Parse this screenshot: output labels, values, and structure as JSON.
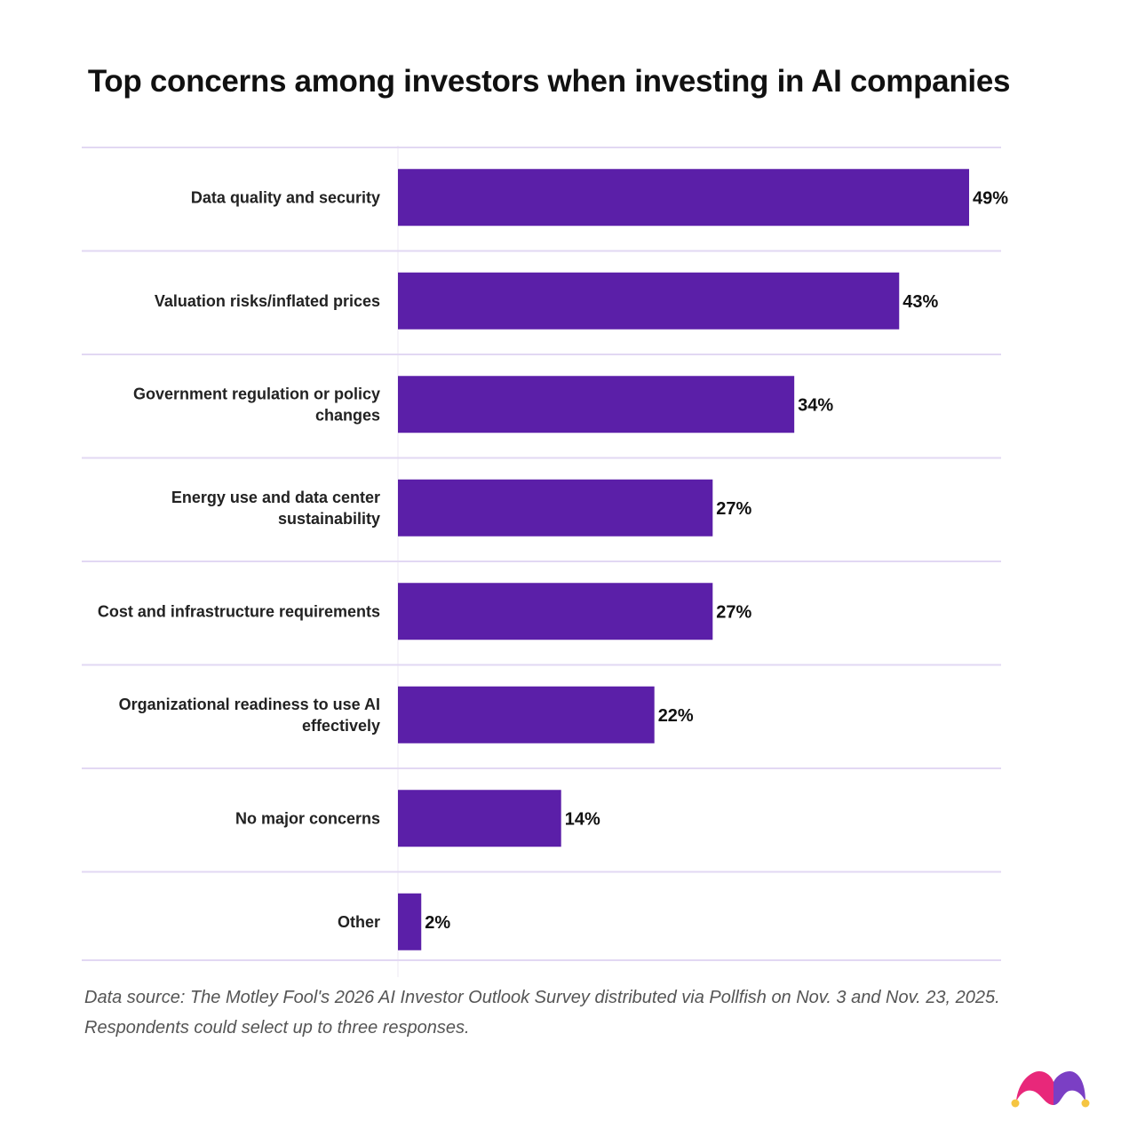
{
  "chart_data": {
    "type": "bar",
    "orientation": "horizontal",
    "title": "Top concerns among investors when investing in AI companies",
    "categories": [
      "Data quality and security",
      "Valuation risks/inflated prices",
      "Government regulation or policy changes",
      "Energy use and data center sustainability",
      "Cost and infrastructure requirements",
      "Organizational readiness to use AI effectively",
      "No major concerns",
      "Other"
    ],
    "category_lines": [
      [
        "Data quality and security"
      ],
      [
        "Valuation risks/inflated prices"
      ],
      [
        "Government regulation or policy",
        "changes"
      ],
      [
        "Energy use and data center",
        "sustainability"
      ],
      [
        "Cost and infrastructure requirements"
      ],
      [
        "Organizational readiness to use AI",
        "effectively"
      ],
      [
        "No major concerns"
      ],
      [
        "Other"
      ]
    ],
    "values": [
      49,
      43,
      34,
      27,
      27,
      22,
      14,
      2
    ],
    "data_labels": [
      "49%",
      "43%",
      "34%",
      "27%",
      "27%",
      "22%",
      "14%",
      "2%"
    ],
    "unit": "%",
    "xlim": [
      0,
      49
    ],
    "grid": false,
    "bar_color": "#5b1fa8",
    "divider_color": "#e2d8f3"
  },
  "footer": {
    "source": "Data source: The Motley Fool's 2026 AI Investor Outlook Survey distributed via Pollfish on Nov. 3 and Nov. 23, 2025. Respondents could select up to three responses."
  },
  "logo": {
    "name": "jester-hat-logo",
    "colors": [
      "#e8287a",
      "#7b3fc4",
      "#f5c542"
    ]
  }
}
